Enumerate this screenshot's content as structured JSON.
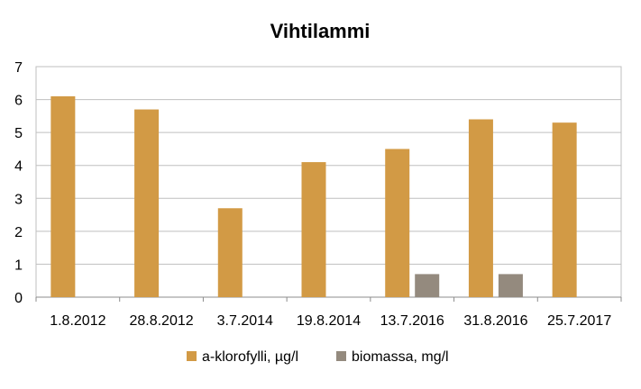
{
  "chart_data": {
    "type": "bar",
    "title": "Vihtilammi",
    "xlabel": "",
    "ylabel": "",
    "categories": [
      "1.8.2012",
      "28.8.2012",
      "3.7.2014",
      "19.8.2014",
      "13.7.2016",
      "31.8.2016",
      "25.7.2017"
    ],
    "series": [
      {
        "name": "a-klorofylli, µg/l",
        "color": "#D29A45",
        "values": [
          6.1,
          5.7,
          2.7,
          4.1,
          4.5,
          5.4,
          5.3
        ]
      },
      {
        "name": "biomassa, mg/l",
        "color": "#948A7E",
        "values": [
          null,
          null,
          null,
          null,
          0.7,
          0.7,
          null
        ]
      }
    ],
    "ylim": [
      0,
      7
    ],
    "yticks": [
      0,
      1,
      2,
      3,
      4,
      5,
      6,
      7
    ],
    "grid": true,
    "legend": "bottom"
  }
}
